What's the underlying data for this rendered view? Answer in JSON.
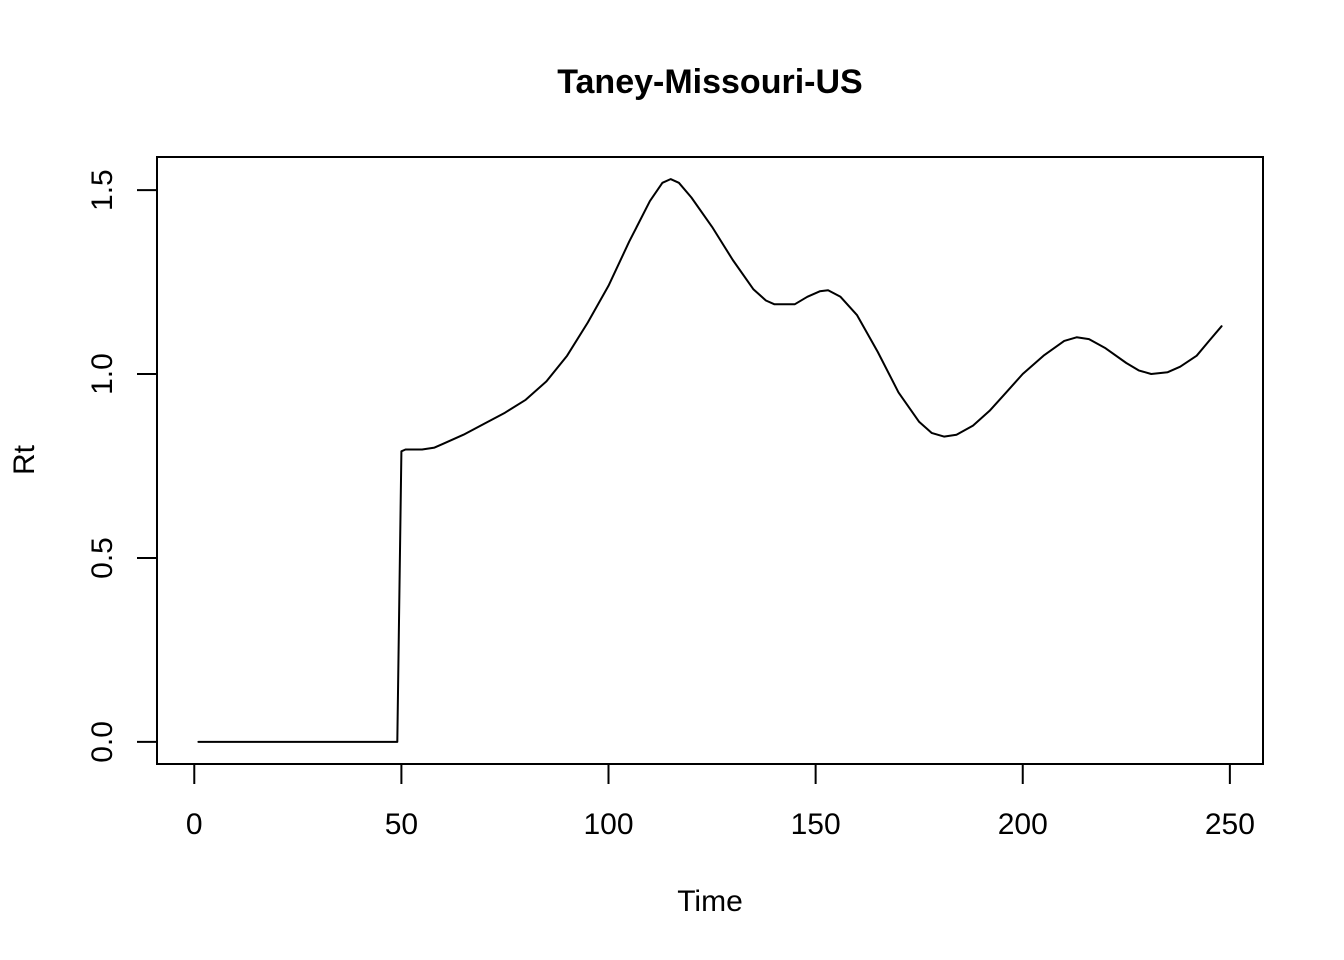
{
  "chart_data": {
    "type": "line",
    "title": "Taney-Missouri-US",
    "xlabel": "Time",
    "ylabel": "Rt",
    "xlim": [
      -9,
      258
    ],
    "ylim": [
      -0.06,
      1.59
    ],
    "x_ticks": [
      0,
      50,
      100,
      150,
      200,
      250
    ],
    "x_tick_labels": [
      "0",
      "50",
      "100",
      "150",
      "200",
      "250"
    ],
    "y_ticks": [
      0.0,
      0.5,
      1.0,
      1.5
    ],
    "y_tick_labels": [
      "0.0",
      "0.5",
      "1.0",
      "1.5"
    ],
    "grid": false,
    "series": [
      {
        "color": "#000000",
        "points": [
          [
            1,
            0
          ],
          [
            10,
            0
          ],
          [
            20,
            0
          ],
          [
            30,
            0
          ],
          [
            40,
            0
          ],
          [
            49,
            0
          ],
          [
            50,
            0.79
          ],
          [
            51,
            0.795
          ],
          [
            55,
            0.795
          ],
          [
            58,
            0.8
          ],
          [
            60,
            0.81
          ],
          [
            65,
            0.835
          ],
          [
            70,
            0.865
          ],
          [
            75,
            0.895
          ],
          [
            80,
            0.93
          ],
          [
            85,
            0.98
          ],
          [
            90,
            1.05
          ],
          [
            95,
            1.14
          ],
          [
            100,
            1.24
          ],
          [
            105,
            1.36
          ],
          [
            110,
            1.47
          ],
          [
            113,
            1.52
          ],
          [
            115,
            1.53
          ],
          [
            117,
            1.52
          ],
          [
            120,
            1.48
          ],
          [
            125,
            1.4
          ],
          [
            130,
            1.31
          ],
          [
            135,
            1.23
          ],
          [
            138,
            1.2
          ],
          [
            140,
            1.19
          ],
          [
            145,
            1.19
          ],
          [
            148,
            1.21
          ],
          [
            151,
            1.225
          ],
          [
            153,
            1.228
          ],
          [
            156,
            1.21
          ],
          [
            160,
            1.16
          ],
          [
            165,
            1.06
          ],
          [
            170,
            0.95
          ],
          [
            175,
            0.87
          ],
          [
            178,
            0.84
          ],
          [
            181,
            0.83
          ],
          [
            184,
            0.835
          ],
          [
            188,
            0.86
          ],
          [
            192,
            0.9
          ],
          [
            196,
            0.95
          ],
          [
            200,
            1.0
          ],
          [
            205,
            1.05
          ],
          [
            210,
            1.09
          ],
          [
            213,
            1.1
          ],
          [
            216,
            1.095
          ],
          [
            220,
            1.07
          ],
          [
            225,
            1.03
          ],
          [
            228,
            1.01
          ],
          [
            231,
            1.0
          ],
          [
            235,
            1.005
          ],
          [
            238,
            1.02
          ],
          [
            242,
            1.05
          ],
          [
            245,
            1.09
          ],
          [
            248,
            1.13
          ]
        ]
      }
    ]
  }
}
